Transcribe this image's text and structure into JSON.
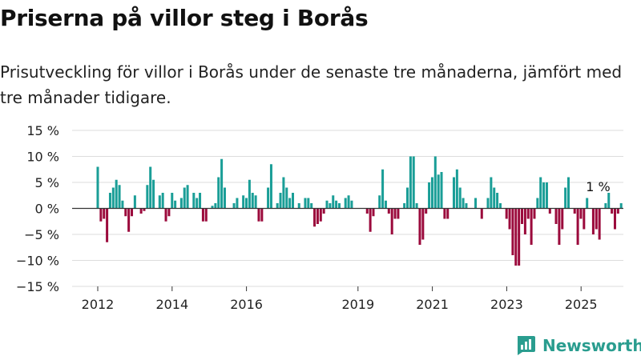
{
  "title": "Priserna på villor steg i Borås",
  "subtitle": "Prisutveckling för villor i Borås under de senaste tre månaderna, jämfört med tre månader tidigare.",
  "brand": "Newsworthy",
  "colors": {
    "positive": "#1a9e97",
    "negative": "#9b0a3c",
    "grid": "#dddddd",
    "axis": "#333333",
    "brand": "#2a9d8f"
  },
  "chart_data": {
    "type": "bar",
    "ylim": [
      -15,
      15
    ],
    "yticks": [
      15,
      10,
      5,
      0,
      -5,
      -10,
      -15
    ],
    "ytick_labels": [
      "15 %",
      "10 %",
      "5 %",
      "0 %",
      "−5 %",
      "−10 %",
      "−15 %"
    ],
    "xticks": [
      {
        "label": "2012",
        "x": 2012.0
      },
      {
        "label": "2014",
        "x": 2014.0
      },
      {
        "label": "2016",
        "x": 2016.0
      },
      {
        "label": "2019",
        "x": 2019.0
      },
      {
        "label": "2021",
        "x": 2021.0
      },
      {
        "label": "2023",
        "x": 2023.0
      },
      {
        "label": "2025",
        "x": 2025.0
      }
    ],
    "annotation": {
      "text": "1 %",
      "x": 2025.0
    },
    "x_start": 2012.0,
    "x_step": 0.0833,
    "values": [
      8,
      -2.5,
      -2,
      -6.5,
      3,
      4,
      5.5,
      4.5,
      1.5,
      -1.5,
      -4.5,
      -1.5,
      2.5,
      0,
      -1,
      -0.5,
      4.5,
      8,
      5.5,
      0,
      2.5,
      3,
      -2.5,
      -1.5,
      3,
      1.5,
      0,
      2,
      4,
      4.5,
      0,
      3,
      2,
      3,
      -2.5,
      -2.5,
      0,
      0.5,
      1,
      6,
      9.5,
      4,
      0,
      0,
      1,
      2,
      0,
      2.5,
      2,
      5.5,
      3,
      2.5,
      -2.5,
      -2.5,
      0,
      4,
      8.5,
      0,
      1,
      3,
      6,
      4,
      2,
      3,
      0,
      1,
      0,
      2,
      2,
      1,
      -3.5,
      -3,
      -2.5,
      -1,
      1.5,
      1,
      2.5,
      1.5,
      1,
      0,
      2,
      2.5,
      1.5,
      0,
      0,
      0,
      0,
      -1,
      -4.5,
      -1.5,
      0,
      2.5,
      7.5,
      1.5,
      -1,
      -5,
      -2,
      -2,
      0,
      1,
      4,
      10,
      10,
      1,
      -7,
      -6,
      -1,
      5,
      6,
      10,
      6.5,
      7,
      -2,
      -2,
      0,
      6,
      7.5,
      4,
      2,
      1,
      0,
      0,
      2,
      0,
      -2,
      0,
      2,
      6,
      4,
      3,
      1,
      0,
      -2,
      -4,
      -9,
      -11,
      -11,
      -3,
      -5,
      -2,
      -7,
      -2,
      2,
      6,
      5,
      5,
      -1,
      0,
      -3,
      -7,
      -4,
      4,
      6,
      0,
      -1,
      -7,
      -2,
      -4,
      2,
      0,
      -5,
      -4,
      -6,
      0,
      1,
      3,
      -1,
      -4,
      -1,
      1
    ]
  }
}
